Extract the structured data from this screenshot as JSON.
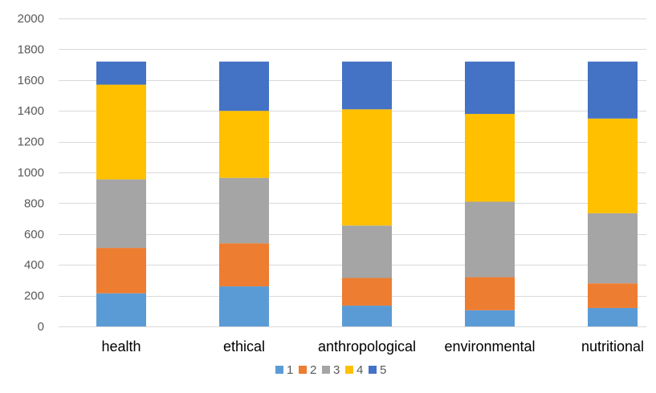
{
  "chart_data": {
    "type": "bar",
    "stacked": true,
    "categories": [
      "health",
      "ethical",
      "anthropological",
      "environmental",
      "nutritional"
    ],
    "series": [
      {
        "name": "1",
        "color": "#5B9BD5",
        "values": [
          215,
          260,
          135,
          105,
          120
        ]
      },
      {
        "name": "2",
        "color": "#ED7D31",
        "values": [
          295,
          280,
          180,
          215,
          160
        ]
      },
      {
        "name": "3",
        "color": "#A5A5A5",
        "values": [
          445,
          425,
          340,
          490,
          455
        ]
      },
      {
        "name": "4",
        "color": "#FFC000",
        "values": [
          615,
          435,
          755,
          570,
          615
        ]
      },
      {
        "name": "5",
        "color": "#4472C4",
        "values": [
          150,
          320,
          310,
          340,
          370
        ]
      }
    ],
    "yticks": [
      "0",
      "200",
      "400",
      "600",
      "800",
      "1000",
      "1200",
      "1400",
      "1600",
      "1800",
      "2000"
    ],
    "ylim": [
      0,
      2000
    ],
    "grid": true,
    "legend_position": "bottom"
  }
}
